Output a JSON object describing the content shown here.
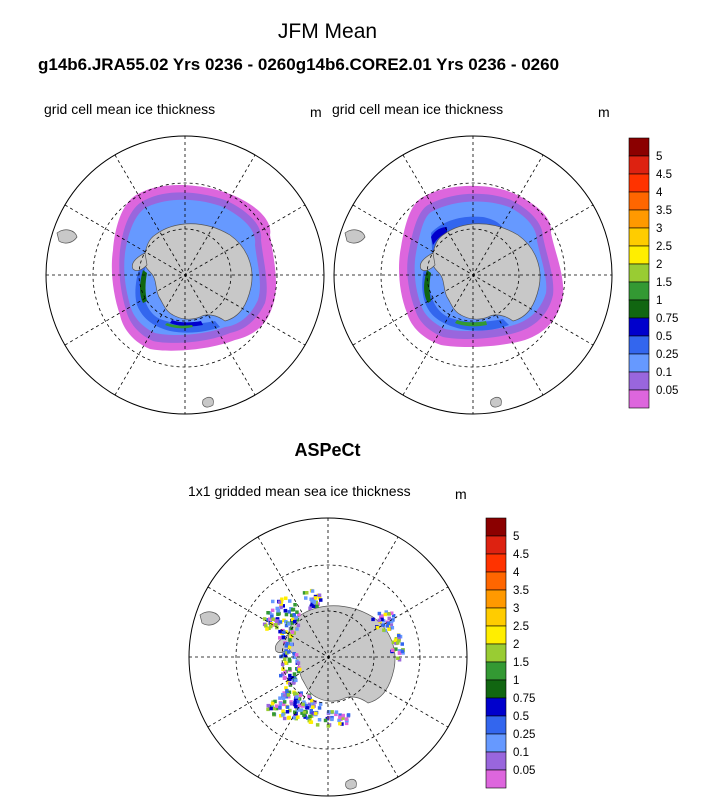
{
  "title": "JFM Mean",
  "subtitle": "g14b6.JRA55.02  Yrs 0236 - 0260g14b6.CORE2.01  Yrs 0236 - 0260",
  "bottom_title": "ASPeCt",
  "colors": {
    "land": "#c8c8c8",
    "ocean": "#ffffff",
    "grid": "#000000"
  },
  "chart_data": [
    {
      "type": "heatmap",
      "projection": "south-polar-stereographic",
      "title": "grid cell mean ice thickness",
      "units": "m",
      "model": "g14b6.JRA55.02",
      "years": "0236 - 0260",
      "season": "JFM"
    },
    {
      "type": "heatmap",
      "projection": "south-polar-stereographic",
      "title": "grid cell mean ice thickness",
      "units": "m",
      "model": "g14b6.CORE2.01",
      "years": "0236 - 0260",
      "season": "JFM"
    },
    {
      "type": "heatmap",
      "projection": "south-polar-stereographic",
      "title": "1x1 gridded mean sea ice thickness",
      "units": "m",
      "source": "ASPeCt",
      "season": "JFM"
    }
  ],
  "colorbar": {
    "levels": [
      "5",
      "4.5",
      "4",
      "3.5",
      "3",
      "2.5",
      "2",
      "1.5",
      "1",
      "0.75",
      "0.5",
      "0.25",
      "0.1",
      "0.05"
    ],
    "colors": [
      "#8b0000",
      "#dd2211",
      "#ff3300",
      "#ff6600",
      "#ff9900",
      "#ffcc00",
      "#ffee00",
      "#99cc33",
      "#339933",
      "#116611",
      "#0000cc",
      "#3366ee",
      "#6699ff",
      "#9966dd",
      "#dd66dd"
    ]
  }
}
